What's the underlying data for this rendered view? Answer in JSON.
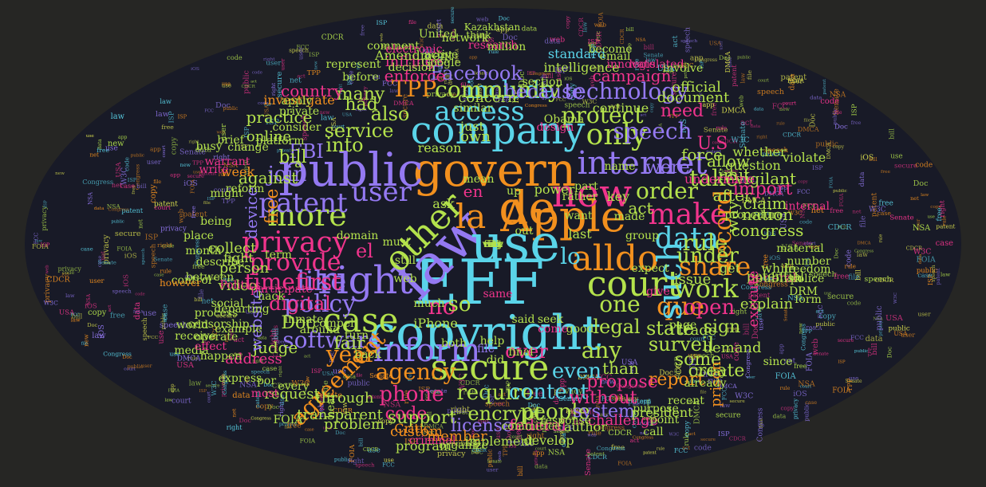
{
  "background_color": "#262624",
  "palette": [
    "#5ad4e9",
    "#b4e24c",
    "#f2901e",
    "#f0348c",
    "#9479f2",
    "#e4e850"
  ],
  "words": [
    {
      "text": "EFF",
      "c": "#5ad4e9"
    },
    {
      "text": "copyright",
      "c": "#5ad4e9"
    },
    {
      "text": "govern",
      "c": "#f2901e"
    },
    {
      "text": "Apple",
      "c": "#f2901e"
    },
    {
      "text": "law",
      "c": "#9479f2"
    },
    {
      "text": "use",
      "c": "#5ad4e9"
    },
    {
      "text": "de",
      "c": "#f2901e"
    },
    {
      "text": "company",
      "c": "#5ad4e9"
    },
    {
      "text": "public",
      "c": "#9479f2"
    },
    {
      "text": "new",
      "c": "#f0348c"
    },
    {
      "text": "right",
      "c": "#9479f2"
    },
    {
      "text": "secure",
      "c": "#b4e24c"
    },
    {
      "text": "court",
      "c": "#b4e24c"
    },
    {
      "text": "alldo",
      "c": "#f2901e"
    },
    {
      "text": "case",
      "c": "#b4e24c"
    },
    {
      "text": "internet",
      "c": "#9479f2"
    },
    {
      "text": "inform",
      "c": "#9479f2"
    },
    {
      "text": "other",
      "c": "#b4e24c"
    },
    {
      "text": "la",
      "c": "#f2901e"
    },
    {
      "text": "que",
      "c": "#f2901e"
    },
    {
      "text": "such",
      "c": "#5ad4e9"
    },
    {
      "text": "more",
      "c": "#b4e24c"
    },
    {
      "text": "data",
      "c": "#5ad4e9"
    },
    {
      "text": "user",
      "c": "#9479f2"
    },
    {
      "text": "make",
      "c": "#f0348c"
    },
    {
      "text": "privacy",
      "c": "#f0348c"
    },
    {
      "text": "patent",
      "c": "#9479f2"
    },
    {
      "text": "only",
      "c": "#b4e24c"
    },
    {
      "text": "provide",
      "c": "#f0348c"
    },
    {
      "text": "like",
      "c": "#9479f2"
    },
    {
      "text": "policy",
      "c": "#9479f2"
    },
    {
      "text": "share",
      "c": "#f2901e"
    },
    {
      "text": "technology",
      "c": "#9479f2"
    },
    {
      "text": "access",
      "c": "#5ad4e9"
    },
    {
      "text": "include",
      "c": "#5ad4e9"
    },
    {
      "text": "community",
      "c": "#b4e24c"
    },
    {
      "text": "Facebook",
      "c": "#9479f2"
    },
    {
      "text": "protect",
      "c": "#b4e24c"
    },
    {
      "text": "speech",
      "c": "#9479f2"
    },
    {
      "text": "order",
      "c": "#b4e24c"
    },
    {
      "text": "rule",
      "c": "#b4e24c"
    },
    {
      "text": "record",
      "c": "#f2901e"
    },
    {
      "text": "work",
      "c": "#b4e24c"
    },
    {
      "text": "timefirst",
      "c": "#f0348c"
    },
    {
      "text": "agency",
      "c": "#f2901e"
    },
    {
      "text": "require",
      "c": "#b4e24c"
    },
    {
      "text": "phone",
      "c": "#f0348c"
    },
    {
      "text": "content",
      "c": "#5ad4e9"
    },
    {
      "text": "even",
      "c": "#5ad4e9"
    },
    {
      "text": "any",
      "c": "#b4e24c"
    },
    {
      "text": "one",
      "c": "#b4e24c"
    },
    {
      "text": "software",
      "c": "#9479f2"
    },
    {
      "text": "year",
      "c": "#f2901e"
    },
    {
      "text": "agreement",
      "c": "#f2901e"
    },
    {
      "text": "people",
      "c": "#b4e24c"
    },
    {
      "text": "state",
      "c": "#b4e24c"
    },
    {
      "text": "legal",
      "c": "#b4e24c"
    },
    {
      "text": "under",
      "c": "#b4e24c"
    },
    {
      "text": "open",
      "c": "#f0348c"
    },
    {
      "text": "take",
      "c": "#b4e24c"
    },
    {
      "text": "join",
      "c": "#9479f2"
    },
    {
      "text": "also",
      "c": "#b4e24c"
    },
    {
      "text": "into",
      "c": "#b4e24c"
    },
    {
      "text": "FBI",
      "c": "#9479f2"
    },
    {
      "text": "TPP",
      "c": "#f2901e"
    },
    {
      "text": "had",
      "c": "#b4e24c"
    },
    {
      "text": "were",
      "c": "#9479f2"
    },
    {
      "text": "because",
      "c": "#9479f2"
    },
    {
      "text": "service",
      "c": "#b4e24c"
    },
    {
      "text": "many",
      "c": "#b4e24c"
    },
    {
      "text": "bill",
      "c": "#b4e24c"
    },
    {
      "text": "free",
      "c": "#f2901e"
    },
    {
      "text": "digital",
      "c": "#f0348c"
    },
    {
      "text": "no",
      "c": "#f0348c"
    },
    {
      "text": "so",
      "c": "#b4e24c"
    },
    {
      "text": "en",
      "c": "#f0348c"
    },
    {
      "text": "el",
      "c": "#f0348c"
    },
    {
      "text": "lo",
      "c": "#5ad4e9"
    },
    {
      "text": "surveil",
      "c": "#b4e24c"
    },
    {
      "text": "sign",
      "c": "#b4e24c"
    },
    {
      "text": "some",
      "c": "#b4e24c"
    },
    {
      "text": "report",
      "c": "#f2901e"
    },
    {
      "text": "system",
      "c": "#9479f2"
    },
    {
      "text": "encrypt",
      "c": "#b4e24c"
    },
    {
      "text": "code",
      "c": "#f0348c"
    },
    {
      "text": "support",
      "c": "#b4e24c"
    },
    {
      "text": "license",
      "c": "#9479f2"
    },
    {
      "text": "federal",
      "c": "#f0348c"
    },
    {
      "text": "propose",
      "c": "#f0348c"
    },
    {
      "text": "without",
      "c": "#f0348c"
    },
    {
      "text": "create",
      "c": "#b4e24c"
    },
    {
      "text": "than",
      "c": "#b4e24c"
    },
    {
      "text": "over",
      "c": "#f0348c"
    },
    {
      "text": "fair",
      "c": "#b4e24c"
    },
    {
      "text": "Doc",
      "c": "#b4e24c"
    },
    {
      "text": "judge",
      "c": "#b4e24c"
    },
    {
      "text": "act",
      "c": "#b4e24c"
    },
    {
      "text": "after",
      "c": "#b4e24c"
    },
    {
      "text": "way",
      "c": "#b4e24c"
    },
    {
      "text": "import",
      "c": "#f0348c"
    },
    {
      "text": "claim",
      "c": "#b4e24c"
    },
    {
      "text": "congress",
      "c": "#b4e24c"
    },
    {
      "text": "nation",
      "c": "#b4e24c"
    },
    {
      "text": "allow",
      "c": "#b4e24c"
    },
    {
      "text": "need",
      "c": "#f0348c"
    },
    {
      "text": "force",
      "c": "#b4e24c"
    },
    {
      "text": "limit",
      "c": "#b4e24c"
    },
    {
      "text": "vigilant",
      "c": "#b4e24c"
    },
    {
      "text": "U.S",
      "c": "#f0348c"
    },
    {
      "text": "against",
      "c": "#b4e24c"
    },
    {
      "text": "practice",
      "c": "#b4e24c"
    },
    {
      "text": "country",
      "c": "#f0348c"
    },
    {
      "text": "enforce",
      "c": "#f0348c"
    },
    {
      "text": "campaign",
      "c": "#f0348c"
    },
    {
      "text": "official",
      "c": "#b4e24c"
    },
    {
      "text": "document",
      "c": "#b4e24c"
    },
    {
      "text": "standard",
      "c": "#5ad4e9"
    },
    {
      "text": "intelligence",
      "c": "#b4e24c"
    },
    {
      "text": "infringe",
      "c": "#f0348c"
    },
    {
      "text": "Amendment",
      "c": "#b4e24c"
    },
    {
      "text": "research",
      "c": "#f0348c"
    },
    {
      "text": "investigate",
      "c": "#f2901e"
    },
    {
      "text": "online",
      "c": "#b4e24c"
    },
    {
      "text": "device",
      "c": "#9479f2"
    },
    {
      "text": "person",
      "c": "#b4e24c"
    },
    {
      "text": "video",
      "c": "#b4e24c"
    },
    {
      "text": "collect",
      "c": "#b4e24c"
    },
    {
      "text": "website",
      "c": "#9479f2"
    },
    {
      "text": "address",
      "c": "#f0348c"
    },
    {
      "text": "request",
      "c": "#b4e24c"
    },
    {
      "text": "through",
      "c": "#b4e24c"
    },
    {
      "text": "transparent",
      "c": "#b4e24c"
    },
    {
      "text": "problem",
      "c": "#b4e24c"
    },
    {
      "text": "custom",
      "c": "#f2901e"
    },
    {
      "text": "member",
      "c": "#f2901e"
    },
    {
      "text": "program",
      "c": "#b4e24c"
    },
    {
      "text": "implement",
      "c": "#b4e24c"
    },
    {
      "text": "develop",
      "c": "#b4e24c"
    },
    {
      "text": "author",
      "c": "#b4e24c"
    },
    {
      "text": "challenge",
      "c": "#f0348c"
    },
    {
      "text": "president",
      "c": "#b4e24c"
    },
    {
      "text": "issue",
      "c": "#b4e24c"
    },
    {
      "text": "trade",
      "c": "#b4e24c"
    },
    {
      "text": "explain",
      "c": "#b4e24c"
    },
    {
      "text": "demand",
      "c": "#b4e24c"
    },
    {
      "text": "get",
      "c": "#b4e24c"
    },
    {
      "text": "while",
      "c": "#b4e24c"
    },
    {
      "text": "general",
      "c": "#f0348c"
    },
    {
      "text": "publish",
      "c": "#b4e24c"
    },
    {
      "text": "potential",
      "c": "#b4e24c"
    },
    {
      "text": "execute",
      "c": "#f0348c"
    },
    {
      "text": "prison",
      "c": "#f2901e"
    },
    {
      "text": "undermine",
      "c": "#f0348c"
    },
    {
      "text": "question",
      "c": "#b4e24c"
    },
    {
      "text": "whether",
      "c": "#b4e24c"
    },
    {
      "text": "violate",
      "c": "#b4e24c"
    },
    {
      "text": "continue",
      "c": "#b4e24c"
    },
    {
      "text": "concern",
      "c": "#b4e24c"
    },
    {
      "text": "reason",
      "c": "#b4e24c"
    },
    {
      "text": "own",
      "c": "#b4e24c"
    },
    {
      "text": "just",
      "c": "#b4e24c"
    },
    {
      "text": "want",
      "c": "#b4e24c"
    },
    {
      "text": "power",
      "c": "#b4e24c"
    },
    {
      "text": "out",
      "c": "#b4e24c"
    },
    {
      "text": "up",
      "c": "#b4e24c"
    },
    {
      "text": "ask",
      "c": "#b4e24c"
    },
    {
      "text": "key",
      "c": "#b4e24c"
    },
    {
      "text": "last",
      "c": "#b4e24c"
    },
    {
      "text": "part",
      "c": "#b4e24c"
    },
    {
      "text": "mean",
      "c": "#b4e24c"
    },
    {
      "text": "a",
      "c": "#b4e24c"
    },
    {
      "text": "week",
      "c": "#f2901e"
    },
    {
      "text": "might",
      "c": "#b4e24c"
    },
    {
      "text": "being",
      "c": "#b4e24c"
    },
    {
      "text": "fight",
      "c": "#b4e24c"
    },
    {
      "text": "write",
      "c": "#f0348c"
    },
    {
      "text": "change",
      "c": "#b4e24c"
    },
    {
      "text": "platform",
      "c": "#b4e24c"
    },
    {
      "text": "before",
      "c": "#b4e24c"
    },
    {
      "text": "consider",
      "c": "#b4e24c"
    },
    {
      "text": "apply",
      "c": "#b4e24c"
    },
    {
      "text": "private",
      "c": "#b4e24c"
    },
    {
      "text": "email",
      "c": "#b4e24c"
    },
    {
      "text": "innovate",
      "c": "#f0348c"
    },
    {
      "text": "decision",
      "c": "#b4e24c"
    },
    {
      "text": "active",
      "c": "#b4e24c"
    },
    {
      "text": "million",
      "c": "#b4e24c"
    },
    {
      "text": "network",
      "c": "#b4e24c"
    },
    {
      "text": "Kazakhstan",
      "c": "#b4e24c"
    },
    {
      "text": "Google",
      "c": "#b4e24c"
    },
    {
      "text": "represent",
      "c": "#b4e24c"
    },
    {
      "text": "legislated",
      "c": "#f0348c"
    },
    {
      "text": "involve",
      "c": "#b4e24c"
    },
    {
      "text": "become",
      "c": "#b4e24c"
    },
    {
      "text": "United",
      "c": "#b4e24c"
    },
    {
      "text": "comment",
      "c": "#b4e24c"
    },
    {
      "text": "electronic",
      "c": "#f0348c"
    },
    {
      "text": "think",
      "c": "#b4e24c"
    },
    {
      "text": "participate",
      "c": "#f0348c"
    },
    {
      "text": "departing",
      "c": "#b4e24c"
    },
    {
      "text": "example",
      "c": "#b4e24c"
    },
    {
      "text": "process",
      "c": "#b4e24c"
    },
    {
      "text": "media",
      "c": "#b4e24c"
    },
    {
      "text": "receive",
      "c": "#b4e24c"
    },
    {
      "text": "world",
      "c": "#b4e24c"
    },
    {
      "text": "FOIA",
      "c": "#b4e24c"
    },
    {
      "text": "Critic",
      "c": "#f2901e"
    },
    {
      "text": "criminal",
      "c": "#f0348c"
    },
    {
      "text": "organize",
      "c": "#b4e24c"
    },
    {
      "text": "committee",
      "c": "#b4e24c"
    },
    {
      "text": "response",
      "c": "#b4e24c"
    },
    {
      "text": "call",
      "c": "#b4e24c"
    },
    {
      "text": "point",
      "c": "#b4e24c"
    },
    {
      "text": "purpose",
      "c": "#b4e24c"
    },
    {
      "text": "recent",
      "c": "#b4e24c"
    },
    {
      "text": "already",
      "c": "#b4e24c"
    },
    {
      "text": "today",
      "c": "#b4e24c"
    },
    {
      "text": "since",
      "c": "#b4e24c"
    },
    {
      "text": "form",
      "c": "#b4e24c"
    },
    {
      "text": "DRM",
      "c": "#b4e24c"
    },
    {
      "text": "freedom",
      "c": "#b4e24c"
    },
    {
      "text": "number",
      "c": "#b4e24c"
    },
    {
      "text": "police",
      "c": "#b4e24c"
    },
    {
      "text": "material",
      "c": "#b4e24c"
    },
    {
      "text": "procedure",
      "c": "#b4e24c"
    },
    {
      "text": "internal",
      "c": "#f0348c"
    },
    {
      "text": "month",
      "c": "#b4e24c"
    },
    {
      "text": "reform",
      "c": "#b4e24c"
    },
    {
      "text": "control",
      "c": "#b4e24c"
    },
    {
      "text": "censorship",
      "c": "#b4e24c"
    },
    {
      "text": "warrant",
      "c": "#f0348c"
    },
    {
      "text": "iPhone",
      "c": "#b4e24c"
    },
    {
      "text": "both",
      "c": "#b4e24c"
    },
    {
      "text": "help",
      "c": "#b4e24c"
    },
    {
      "text": "did",
      "c": "#b4e24c"
    },
    {
      "text": "good",
      "c": "#b4e24c"
    },
    {
      "text": "page",
      "c": "#b4e24c"
    },
    {
      "text": "give",
      "c": "#f0348c"
    },
    {
      "text": "expect",
      "c": "#b4e24c"
    },
    {
      "text": "group",
      "c": "#b4e24c"
    },
    {
      "text": "made",
      "c": "#b4e24c"
    },
    {
      "text": "name",
      "c": "#b4e24c"
    },
    {
      "text": "brief",
      "c": "#b4e24c"
    },
    {
      "text": "busy",
      "c": "#b4e24c"
    },
    {
      "text": "describe",
      "c": "#b4e24c"
    },
    {
      "text": "place",
      "c": "#b4e24c"
    },
    {
      "text": "however",
      "c": "#f2901e"
    },
    {
      "text": "between",
      "c": "#b4e24c"
    },
    {
      "text": "Politics",
      "c": "#f0348c"
    },
    {
      "text": "social",
      "c": "#b4e24c"
    },
    {
      "text": "hack",
      "c": "#b4e24c"
    },
    {
      "text": "compel",
      "c": "#b4e24c"
    },
    {
      "text": "around",
      "c": "#b4e24c"
    },
    {
      "text": "inmate",
      "c": "#b4e24c"
    },
    {
      "text": "hear",
      "c": "#b4e24c"
    },
    {
      "text": "turn",
      "c": "#b4e24c"
    },
    {
      "text": "back",
      "c": "#b4e24c"
    },
    {
      "text": "por",
      "c": "#b4e24c"
    },
    {
      "text": "most",
      "c": "#f0348c"
    },
    {
      "text": "every",
      "c": "#b4e24c"
    },
    {
      "text": "express",
      "c": "#b4e24c"
    },
    {
      "text": "happen",
      "c": "#b4e24c"
    },
    {
      "text": "effect",
      "c": "#f0348c"
    },
    {
      "text": "operate",
      "c": "#b4e24c"
    },
    {
      "text": "rather",
      "c": "#b4e24c"
    },
    {
      "text": "section",
      "c": "#b4e24c"
    },
    {
      "text": "design",
      "c": "#f0348c"
    },
    {
      "text": "Obama",
      "c": "#b4e24c"
    },
    {
      "text": "similar",
      "c": "#b4e24c"
    },
    {
      "text": "domain",
      "c": "#b4e24c"
    },
    {
      "text": "web",
      "c": "#b4e24c"
    },
    {
      "text": "term",
      "c": "#b4e24c"
    },
    {
      "text": "must",
      "c": "#b4e24c"
    },
    {
      "text": "still",
      "c": "#b4e24c"
    },
    {
      "text": "much",
      "c": "#b4e24c"
    },
    {
      "text": "same",
      "c": "#f0348c"
    },
    {
      "text": "file",
      "c": "#9479f2"
    },
    {
      "text": "said",
      "c": "#b4e24c"
    },
    {
      "text": "final",
      "c": "#b4e24c"
    },
    {
      "text": "come",
      "c": "#f0348c"
    },
    {
      "text": "seek",
      "c": "#b4e24c"
    },
    {
      "text": "why",
      "c": "#b4e24c"
    },
    {
      "text": "risk",
      "c": "#b4e24c"
    },
    {
      "text": "day",
      "c": "#b4e24c"
    },
    {
      "text": "fact",
      "c": "#b4e24c"
    },
    {
      "text": "very",
      "c": "#b4e24c"
    },
    {
      "text": "vote",
      "c": "#b4e24c"
    },
    {
      "text": "city",
      "c": "#b4e24c"
    }
  ]
}
